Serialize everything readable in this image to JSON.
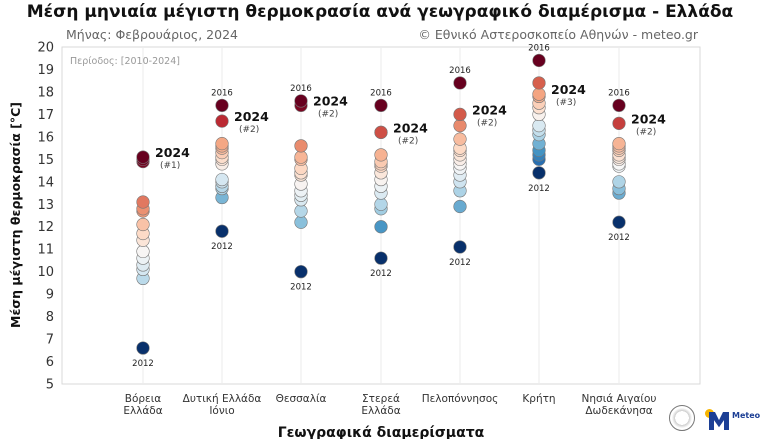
{
  "title": "Μέση μηνιαία μέγιστη θερμοκρασία ανά γεωγραφικό διαμέρισμα - Ελλάδα",
  "subtitle_left": "Μήνας: Φεβρουάριος, 2024",
  "subtitle_right": "© Εθνικό Αστεροσκοπείο Αθηνών - meteo.gr",
  "period_label": "Περίοδος: [2010-2024]",
  "logo_text": "Meteo",
  "chart_data": {
    "type": "scatter",
    "xlabel": "Γεωγραφικά διαμερίσματα",
    "ylabel": "Μέση μέγιστη θερμοκρασία [°C]",
    "ylim": [
      5,
      20
    ],
    "yticks": [
      5,
      6,
      7,
      8,
      9,
      10,
      11,
      12,
      13,
      14,
      15,
      16,
      17,
      18,
      19,
      20
    ],
    "grid": "vertical",
    "categories": [
      [
        "Βόρεια",
        "Ελλάδα"
      ],
      [
        "Δυτική Ελλάδα",
        "Ιόνιο"
      ],
      [
        "Θεσσαλία"
      ],
      [
        "Στερεά",
        "Ελλάδα"
      ],
      [
        "Πελοπόννησος"
      ],
      [
        "Κρήτη"
      ],
      [
        "Νησιά Αιγαίου",
        "Δωδεκάνησα"
      ]
    ],
    "series": [
      {
        "values": [
          6.6,
          9.7,
          10.1,
          10.3,
          10.6,
          10.9,
          11.4,
          11.7,
          12.1,
          12.7,
          12.8,
          13.1,
          14.9,
          15.0,
          15.1
        ]
      },
      {
        "values": [
          11.8,
          13.3,
          13.7,
          13.8,
          14.0,
          14.1,
          14.8,
          15.0,
          15.1,
          15.3,
          15.5,
          15.6,
          15.7,
          16.7,
          17.4
        ]
      },
      {
        "values": [
          10.0,
          12.2,
          12.7,
          13.2,
          13.4,
          13.6,
          13.9,
          14.3,
          14.4,
          14.6,
          15.0,
          15.1,
          15.6,
          17.4,
          17.6
        ]
      },
      {
        "values": [
          10.6,
          12.0,
          12.8,
          13.0,
          13.5,
          13.8,
          14.1,
          14.4,
          14.7,
          14.8,
          14.9,
          15.2,
          16.2,
          16.2,
          17.4
        ]
      },
      {
        "values": [
          11.1,
          12.9,
          13.6,
          14.0,
          14.3,
          14.6,
          14.8,
          15.0,
          15.2,
          15.4,
          15.5,
          15.9,
          16.5,
          17.0,
          18.4
        ]
      },
      {
        "values": [
          14.4,
          15.0,
          15.2,
          15.4,
          15.7,
          16.1,
          16.3,
          16.5,
          17.0,
          17.3,
          17.5,
          17.8,
          17.9,
          18.4,
          19.4
        ]
      },
      {
        "values": [
          12.2,
          13.5,
          13.7,
          14.0,
          14.7,
          14.8,
          15.0,
          15.1,
          15.2,
          15.4,
          15.5,
          15.6,
          15.7,
          16.6,
          17.4
        ]
      }
    ],
    "annotations": [
      {
        "lowest": "2012",
        "highest": "",
        "current": "2024",
        "rank": "(#1)",
        "current_value": 15.1
      },
      {
        "lowest": "2012",
        "highest": "2016",
        "current": "2024",
        "rank": "(#2)",
        "current_value": 16.7
      },
      {
        "lowest": "2012",
        "highest": "2016",
        "current": "2024",
        "rank": "(#2)",
        "current_value": 17.4
      },
      {
        "lowest": "2012",
        "highest": "2016",
        "current": "2024",
        "rank": "(#2)",
        "current_value": 16.2
      },
      {
        "lowest": "2012",
        "highest": "2016",
        "current": "2024",
        "rank": "(#2)",
        "current_value": 17.0
      },
      {
        "lowest": "2012",
        "highest": "2016",
        "current": "2024",
        "rank": "(#3)",
        "current_value": 17.9
      },
      {
        "lowest": "2012",
        "highest": "2016",
        "current": "2024",
        "rank": "(#2)",
        "current_value": 16.6
      }
    ],
    "colormap": [
      "#08306b",
      "#2166ac",
      "#4393c3",
      "#92c5de",
      "#d1e5f0",
      "#f7f7f7",
      "#fddbc7",
      "#f4a582",
      "#d6604d",
      "#b2182b",
      "#67001f"
    ]
  }
}
